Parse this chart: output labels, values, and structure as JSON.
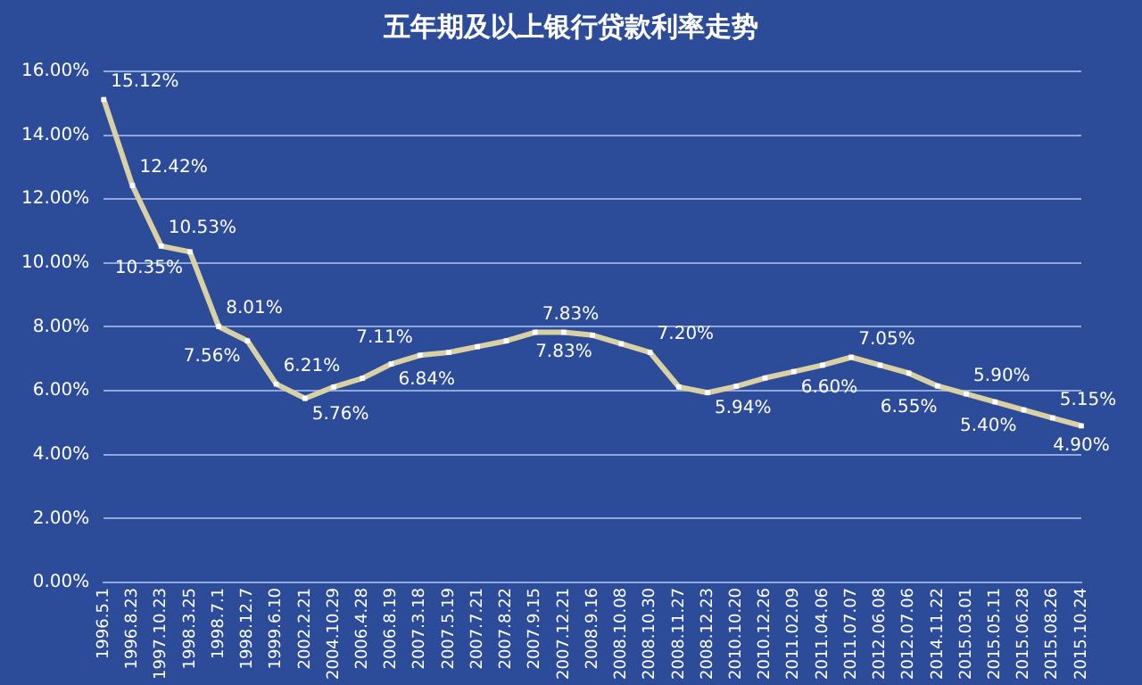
{
  "chart_data": {
    "type": "line",
    "title": "五年期及以上银行贷款利率走势",
    "categories": [
      "1996.5.1",
      "1996.8.23",
      "1997.10.23",
      "1998.3.25",
      "1998.7.1",
      "1998.12.7",
      "1999.6.10",
      "2002.2.21",
      "2004.10.29",
      "2006.4.28",
      "2006.8.19",
      "2007.3.18",
      "2007.5.19",
      "2007.7.21",
      "2007.8.22",
      "2007.9.15",
      "2007.12.21",
      "2008.9.16",
      "2008.10.08",
      "2008.10.30",
      "2008.11.27",
      "2008.12.23",
      "2010.10.20",
      "2010.12.26",
      "2011.02.09",
      "2011.04.06",
      "2011.07.07",
      "2012.06.08",
      "2012.07.06",
      "2014.11.22",
      "2015.03.01",
      "2015.05.11",
      "2015.06.28",
      "2015.08.26",
      "2015.10.24"
    ],
    "series": [
      {
        "color": "#d9d0a3",
        "values": [
          15.12,
          12.42,
          10.53,
          10.35,
          8.01,
          7.56,
          6.21,
          5.76,
          6.12,
          6.39,
          6.84,
          7.11,
          7.2,
          7.38,
          7.56,
          7.83,
          7.83,
          7.74,
          7.47,
          7.2,
          6.12,
          5.94,
          6.14,
          6.4,
          6.6,
          6.8,
          7.05,
          6.8,
          6.55,
          6.15,
          5.9,
          5.65,
          5.4,
          5.15,
          4.9
        ],
        "value_labels": [
          "15.12%",
          "12.42%",
          "10.53%",
          "10.35%",
          "8.01%",
          "7.56%",
          "6.21%",
          "5.76%",
          null,
          null,
          "6.84%",
          "7.11%",
          null,
          null,
          null,
          "7.83%",
          "7.83%",
          null,
          null,
          "7.20%",
          null,
          "5.94%",
          null,
          null,
          "6.60%",
          null,
          "7.05%",
          null,
          "6.55%",
          null,
          "5.90%",
          null,
          "5.40%",
          "5.15%",
          "4.90%"
        ]
      }
    ],
    "ylim": [
      0,
      16
    ],
    "yticks": [
      {
        "value": 0,
        "label": "0.00%"
      },
      {
        "value": 2,
        "label": "2.00%"
      },
      {
        "value": 4,
        "label": "4.00%"
      },
      {
        "value": 6,
        "label": "6.00%"
      },
      {
        "value": 8,
        "label": "8.00%"
      },
      {
        "value": 10,
        "label": "10.00%"
      },
      {
        "value": 12,
        "label": "12.00%"
      },
      {
        "value": 14,
        "label": "14.00%"
      },
      {
        "value": 16,
        "label": "16.00%"
      }
    ],
    "grid": "y",
    "legend": false,
    "marker": "square",
    "line_style": "solid"
  }
}
